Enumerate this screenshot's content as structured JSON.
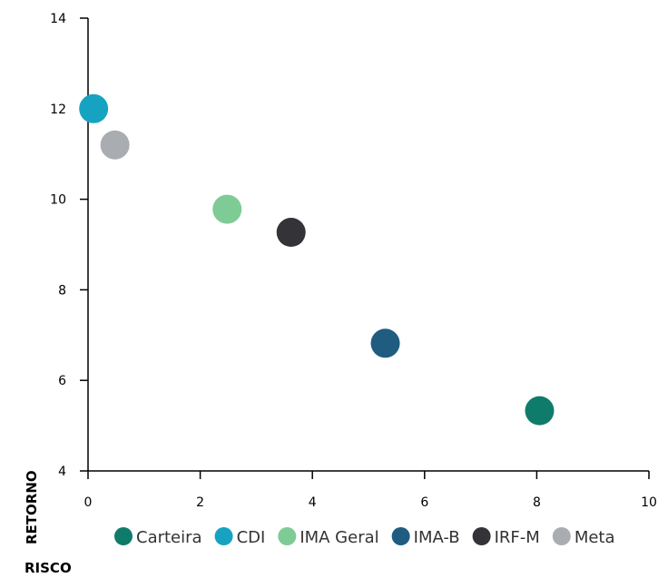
{
  "chart_data": {
    "type": "scatter",
    "xlabel": "RISCO",
    "ylabel": "RETORNO",
    "xlim": [
      0,
      10
    ],
    "ylim": [
      4,
      14
    ],
    "x_ticks": [
      0,
      2,
      4,
      6,
      8,
      10
    ],
    "y_ticks": [
      4,
      6,
      8,
      10,
      12,
      14
    ],
    "grid": false,
    "legend_position": "bottom",
    "series": [
      {
        "name": "Carteira",
        "color": "#0f7c6b",
        "x": 8.05,
        "y": 5.33
      },
      {
        "name": "CDI",
        "color": "#16a3c2",
        "x": 0.1,
        "y": 12.0
      },
      {
        "name": "IMA Geral",
        "color": "#7fcb96",
        "x": 2.48,
        "y": 9.78
      },
      {
        "name": "IMA-B",
        "color": "#1f5c80",
        "x": 5.3,
        "y": 6.82
      },
      {
        "name": "IRF-M",
        "color": "#333338",
        "x": 3.62,
        "y": 9.27
      },
      {
        "name": "Meta",
        "color": "#a9adb1",
        "x": 0.48,
        "y": 11.2
      }
    ]
  }
}
